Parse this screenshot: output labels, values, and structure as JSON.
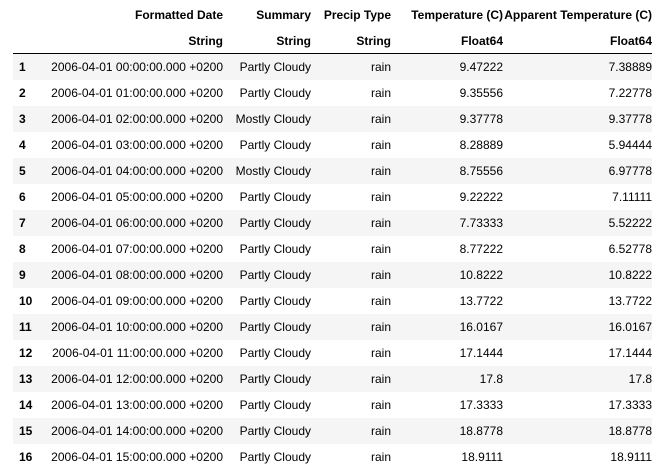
{
  "table": {
    "columns": [
      {
        "name": "Formatted Date",
        "type": "String"
      },
      {
        "name": "Summary",
        "type": "String"
      },
      {
        "name": "Precip Type",
        "type": "String"
      },
      {
        "name": "Temperature (C)",
        "type": "Float64"
      },
      {
        "name": "Apparent Temperature (C)",
        "type": "Float64"
      }
    ],
    "rows": [
      {
        "index": "1",
        "date": "2006-04-01 00:00:00.000 +0200",
        "summary": "Partly Cloudy",
        "precip": "rain",
        "temp": "9.47222",
        "apparent": "7.38889"
      },
      {
        "index": "2",
        "date": "2006-04-01 01:00:00.000 +0200",
        "summary": "Partly Cloudy",
        "precip": "rain",
        "temp": "9.35556",
        "apparent": "7.22778"
      },
      {
        "index": "3",
        "date": "2006-04-01 02:00:00.000 +0200",
        "summary": "Mostly Cloudy",
        "precip": "rain",
        "temp": "9.37778",
        "apparent": "9.37778"
      },
      {
        "index": "4",
        "date": "2006-04-01 03:00:00.000 +0200",
        "summary": "Partly Cloudy",
        "precip": "rain",
        "temp": "8.28889",
        "apparent": "5.94444"
      },
      {
        "index": "5",
        "date": "2006-04-01 04:00:00.000 +0200",
        "summary": "Mostly Cloudy",
        "precip": "rain",
        "temp": "8.75556",
        "apparent": "6.97778"
      },
      {
        "index": "6",
        "date": "2006-04-01 05:00:00.000 +0200",
        "summary": "Partly Cloudy",
        "precip": "rain",
        "temp": "9.22222",
        "apparent": "7.11111"
      },
      {
        "index": "7",
        "date": "2006-04-01 06:00:00.000 +0200",
        "summary": "Partly Cloudy",
        "precip": "rain",
        "temp": "7.73333",
        "apparent": "5.52222"
      },
      {
        "index": "8",
        "date": "2006-04-01 07:00:00.000 +0200",
        "summary": "Partly Cloudy",
        "precip": "rain",
        "temp": "8.77222",
        "apparent": "6.52778"
      },
      {
        "index": "9",
        "date": "2006-04-01 08:00:00.000 +0200",
        "summary": "Partly Cloudy",
        "precip": "rain",
        "temp": "10.8222",
        "apparent": "10.8222"
      },
      {
        "index": "10",
        "date": "2006-04-01 09:00:00.000 +0200",
        "summary": "Partly Cloudy",
        "precip": "rain",
        "temp": "13.7722",
        "apparent": "13.7722"
      },
      {
        "index": "11",
        "date": "2006-04-01 10:00:00.000 +0200",
        "summary": "Partly Cloudy",
        "precip": "rain",
        "temp": "16.0167",
        "apparent": "16.0167"
      },
      {
        "index": "12",
        "date": "2006-04-01 11:00:00.000 +0200",
        "summary": "Partly Cloudy",
        "precip": "rain",
        "temp": "17.1444",
        "apparent": "17.1444"
      },
      {
        "index": "13",
        "date": "2006-04-01 12:00:00.000 +0200",
        "summary": "Partly Cloudy",
        "precip": "rain",
        "temp": "17.8",
        "apparent": "17.8"
      },
      {
        "index": "14",
        "date": "2006-04-01 13:00:00.000 +0200",
        "summary": "Partly Cloudy",
        "precip": "rain",
        "temp": "17.3333",
        "apparent": "17.3333"
      },
      {
        "index": "15",
        "date": "2006-04-01 14:00:00.000 +0200",
        "summary": "Partly Cloudy",
        "precip": "rain",
        "temp": "18.8778",
        "apparent": "18.8778"
      },
      {
        "index": "16",
        "date": "2006-04-01 15:00:00.000 +0200",
        "summary": "Partly Cloudy",
        "precip": "rain",
        "temp": "18.9111",
        "apparent": "18.9111"
      }
    ]
  }
}
